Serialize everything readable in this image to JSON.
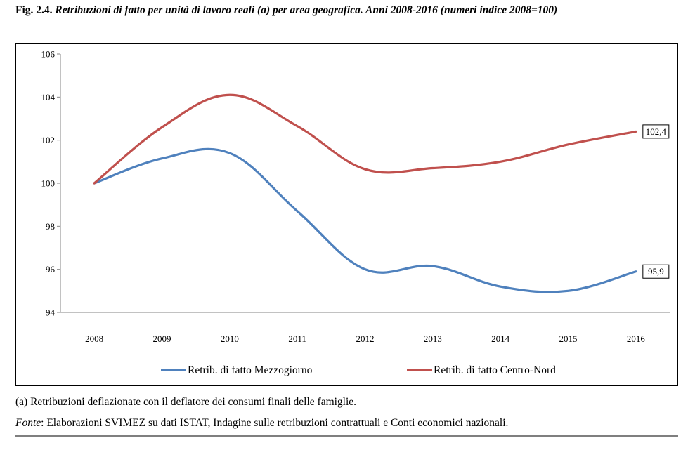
{
  "figure": {
    "number": "Fig. 2.4.",
    "title": "Retribuzioni di fatto per unità di lavoro reali (a) per area geografica. Anni 2008-2016 (numeri indice 2008=100)"
  },
  "note": "(a) Retribuzioni deflazionate con il deflatore dei consumi finali delle famiglie.",
  "source": {
    "label": "Fonte",
    "text": ": Elaborazioni SVIMEZ su dati ISTAT, Indagine sulle retribuzioni contrattuali e Conti economici nazionali."
  },
  "chart_data": {
    "type": "line",
    "title": "",
    "xlabel": "",
    "ylabel": "",
    "categories": [
      "2008",
      "2009",
      "2010",
      "2011",
      "2012",
      "2013",
      "2014",
      "2015",
      "2016"
    ],
    "ylim": [
      94,
      106
    ],
    "yticks": [
      94,
      96,
      98,
      100,
      102,
      104,
      106
    ],
    "grid": false,
    "legend_position": "bottom",
    "series": [
      {
        "name": "Retrib. di fatto Mezzogiorno",
        "color": "#4f81bd",
        "values": [
          100,
          101.15,
          101.4,
          98.7,
          96.0,
          96.15,
          95.2,
          95.0,
          95.9
        ],
        "end_label": "95,9"
      },
      {
        "name": "Retrib. di fatto Centro-Nord",
        "color": "#c0504d",
        "values": [
          100,
          102.6,
          104.1,
          102.65,
          100.65,
          100.7,
          101.0,
          101.8,
          102.4
        ],
        "end_label": "102,4"
      }
    ]
  }
}
